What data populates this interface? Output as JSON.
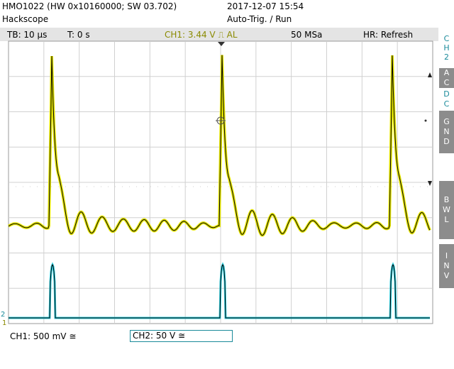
{
  "header": {
    "device": "HMO1022 (HW 0x10160000; SW 03.702)",
    "name": "Hackscope",
    "datetime": "2017-12-07 15:54",
    "mode": "Auto-Trig. / Run"
  },
  "status_bar": {
    "timebase": "TB: 10 µs",
    "trigger_time": "T: 0 s",
    "trigger": "CH1: 3.44 V ⎍ AL",
    "sample_rate": "50 MSa",
    "acquisition": "HR: Refresh"
  },
  "sidebar": {
    "channel": "CH2",
    "buttons": [
      "AC",
      "DC",
      "GND",
      "BWL",
      "INV"
    ]
  },
  "footer": {
    "ch1": "CH1: 500 mV ≅",
    "ch2": "CH2: 50 V ≅"
  },
  "markers": {
    "ch2": "2",
    "ch1": "1"
  }
}
